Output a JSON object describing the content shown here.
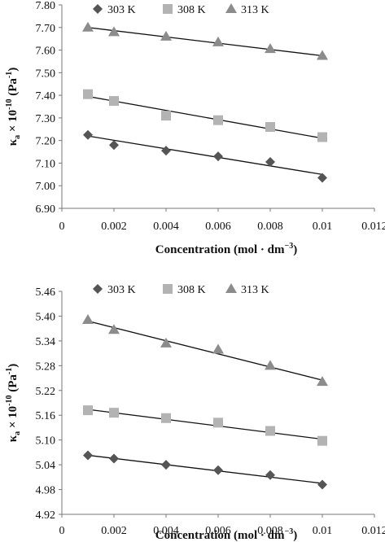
{
  "chart_data": [
    {
      "type": "scatter",
      "xlabel": "Concentration (mol · dm⁻³)",
      "ylabel": "κa × 10⁻¹⁰ (Pa⁻¹)",
      "xlim": [
        0,
        0.012
      ],
      "ylim": [
        6.9,
        7.8
      ],
      "x_ticks": [
        "0",
        "0.002",
        "0.004",
        "0.006",
        "0.008",
        "0.01",
        "0.012"
      ],
      "y_ticks": [
        "6.90",
        "7.00",
        "7.10",
        "7.20",
        "7.30",
        "7.40",
        "7.50",
        "7.60",
        "7.70",
        "7.80"
      ],
      "legend_position": "top",
      "series": [
        {
          "name": "303 K",
          "marker": "diamond",
          "color": "#555555",
          "x": [
            0.001,
            0.002,
            0.004,
            0.006,
            0.008,
            0.01
          ],
          "y": [
            7.225,
            7.18,
            7.155,
            7.13,
            7.105,
            7.035
          ],
          "trend": [
            [
              0.001,
              7.22
            ],
            [
              0.01,
              7.05
            ]
          ]
        },
        {
          "name": "308 K",
          "marker": "square",
          "color": "#b3b3b3",
          "x": [
            0.001,
            0.002,
            0.004,
            0.006,
            0.008,
            0.01
          ],
          "y": [
            7.405,
            7.375,
            7.31,
            7.29,
            7.26,
            7.215
          ],
          "trend": [
            [
              0.001,
              7.395
            ],
            [
              0.01,
              7.21
            ]
          ]
        },
        {
          "name": "313 K",
          "marker": "triangle",
          "color": "#8c8c8c",
          "x": [
            0.001,
            0.002,
            0.004,
            0.006,
            0.008,
            0.01
          ],
          "y": [
            7.7,
            7.68,
            7.66,
            7.635,
            7.605,
            7.575
          ],
          "trend": [
            [
              0.001,
              7.7
            ],
            [
              0.01,
              7.575
            ]
          ]
        }
      ]
    },
    {
      "type": "scatter",
      "xlabel": "Concentration (mol · dm⁻³)",
      "ylabel": "κa × 10⁻¹⁰ (Pa⁻¹)",
      "xlim": [
        0,
        0.012
      ],
      "ylim": [
        4.92,
        5.46
      ],
      "x_ticks": [
        "0",
        "0.002",
        "0.004",
        "0.006",
        "0.008",
        "0.01",
        "0.012"
      ],
      "y_ticks": [
        "4.92",
        "4.98",
        "5.04",
        "5.10",
        "5.16",
        "5.22",
        "5.28",
        "5.34",
        "5.40",
        "5.46"
      ],
      "legend_position": "top",
      "series": [
        {
          "name": "303 K",
          "marker": "diamond",
          "color": "#555555",
          "x": [
            0.001,
            0.002,
            0.004,
            0.006,
            0.008,
            0.01
          ],
          "y": [
            5.063,
            5.055,
            5.04,
            5.027,
            5.015,
            4.992
          ],
          "trend": [
            [
              0.001,
              5.063
            ],
            [
              0.01,
              4.995
            ]
          ]
        },
        {
          "name": "308 K",
          "marker": "square",
          "color": "#b3b3b3",
          "x": [
            0.001,
            0.002,
            0.004,
            0.006,
            0.008,
            0.01
          ],
          "y": [
            5.172,
            5.166,
            5.153,
            5.142,
            5.122,
            5.098
          ],
          "trend": [
            [
              0.001,
              5.174
            ],
            [
              0.01,
              5.102
            ]
          ]
        },
        {
          "name": "313 K",
          "marker": "triangle",
          "color": "#8c8c8c",
          "x": [
            0.001,
            0.002,
            0.004,
            0.006,
            0.008,
            0.01
          ],
          "y": [
            5.391,
            5.367,
            5.334,
            5.319,
            5.28,
            5.241
          ],
          "trend": [
            [
              0.001,
              5.388
            ],
            [
              0.01,
              5.245
            ]
          ]
        }
      ]
    }
  ]
}
